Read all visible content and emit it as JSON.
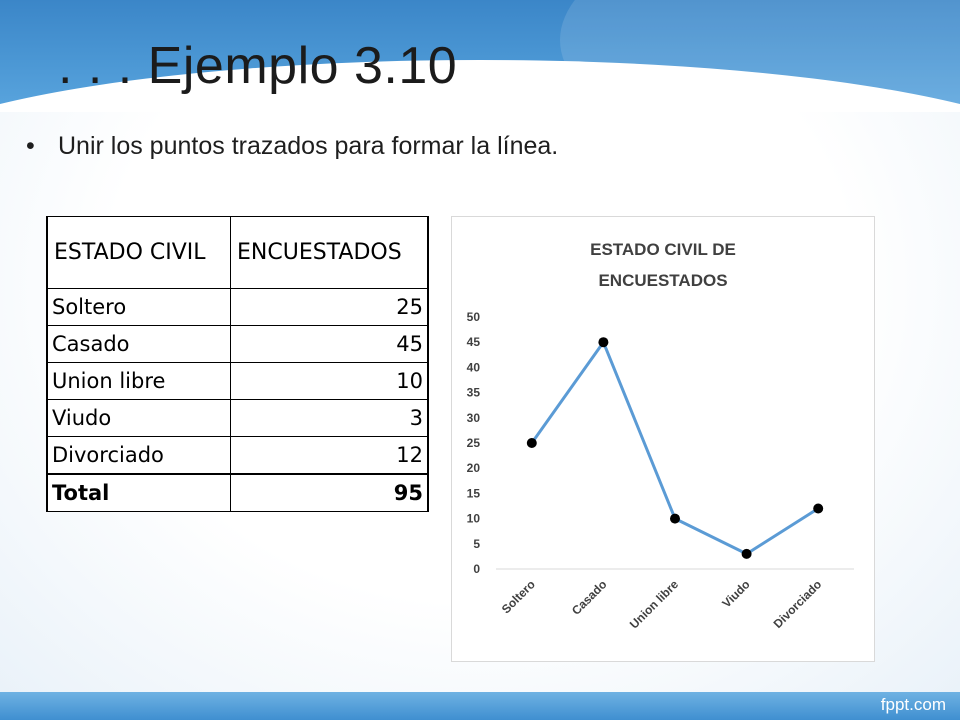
{
  "slide": {
    "title": ". . . Ejemplo 3.10",
    "bullet": "Unir los puntos trazados para formar la línea.",
    "bullet_marker": "•",
    "footer_brand": "fppt.com"
  },
  "table": {
    "headers": [
      "ESTADO CIVIL",
      "ENCUESTADOS"
    ],
    "rows": [
      {
        "label": "Soltero",
        "value": "25"
      },
      {
        "label": "Casado",
        "value": "45"
      },
      {
        "label": "Union libre",
        "value": "10"
      },
      {
        "label": "Viudo",
        "value": "3"
      },
      {
        "label": "Divorciado",
        "value": "12"
      }
    ],
    "total": {
      "label": "Total",
      "value": "95"
    }
  },
  "chart_data": {
    "type": "line",
    "title": "ESTADO CIVIL DE ENCUESTADOS",
    "categories": [
      "Soltero",
      "Casado",
      "Union libre",
      "Viudo",
      "Divorciado"
    ],
    "values": [
      25,
      45,
      10,
      3,
      12
    ],
    "ylim": [
      0,
      50
    ],
    "yticks": [
      0,
      5,
      10,
      15,
      20,
      25,
      30,
      35,
      40,
      45,
      50
    ],
    "xlabel": "",
    "ylabel": "",
    "grid": false,
    "legend": "none",
    "line_color": "#5b9bd5",
    "marker_color": "#000000"
  },
  "colors": {
    "header_blue": "#4b97d4",
    "footer_blue": "#3f8fd0"
  }
}
